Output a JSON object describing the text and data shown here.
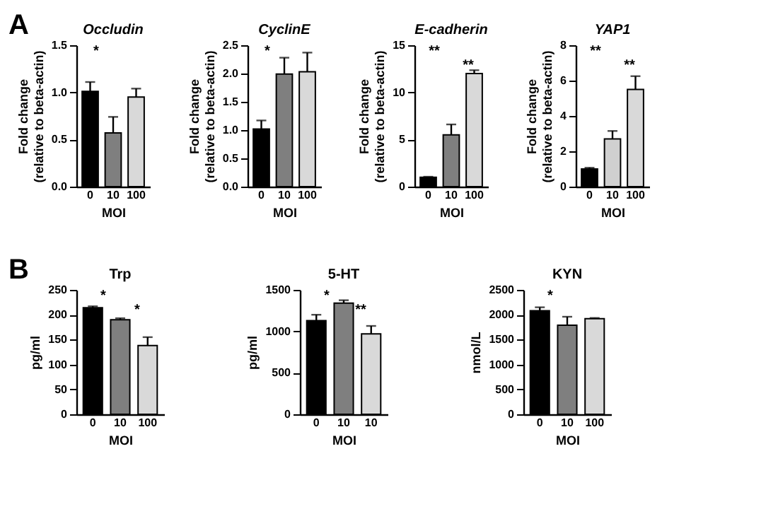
{
  "chart_data": [
    {
      "type": "bar",
      "title": "Occludin",
      "xlabel": "MOI",
      "ylabel": "Fold change\n(relative to beta-actin)",
      "categories": [
        "0",
        "10",
        "100"
      ],
      "values": [
        1.01,
        0.57,
        0.95
      ],
      "errors": [
        0.1,
        0.17,
        0.09
      ],
      "colors": [
        "#000000",
        "#7f7f7f",
        "#d9d9d9"
      ],
      "ylim": [
        0,
        1.5
      ],
      "yticks": [
        {
          "value": 0,
          "label": "0.0"
        },
        {
          "value": 0.5,
          "label": "0.5"
        },
        {
          "value": 1,
          "label": "1.0"
        },
        {
          "value": 1.5,
          "label": "1.5"
        }
      ],
      "annotations": [
        "A",
        "*"
      ]
    },
    {
      "type": "bar",
      "title": "CyclinE",
      "xlabel": "MOI",
      "ylabel": "Fold change\n(relative to beta-actin)",
      "categories": [
        "0",
        "10",
        "100"
      ],
      "values": [
        1.02,
        1.99,
        2.03
      ],
      "errors": [
        0.15,
        0.29,
        0.34
      ],
      "colors": [
        "#000000",
        "#7f7f7f",
        "#d9d9d9"
      ],
      "ylim": [
        0,
        2.5
      ],
      "yticks": [
        {
          "value": 0,
          "label": "0.0"
        },
        {
          "value": 0.5,
          "label": "0.5"
        },
        {
          "value": 1,
          "label": "1.0"
        },
        {
          "value": 1.5,
          "label": "1.5"
        },
        {
          "value": 2,
          "label": "2.0"
        },
        {
          "value": 2.5,
          "label": "2.5"
        }
      ],
      "annotations": [
        "*"
      ]
    },
    {
      "type": "bar",
      "title": "E-cadherin",
      "xlabel": "MOI",
      "ylabel": "Fold change\n(relative to beta-actin)",
      "categories": [
        "0",
        "10",
        "100"
      ],
      "values": [
        1.0,
        5.5,
        12.0
      ],
      "errors": [
        0.05,
        1.1,
        0.35
      ],
      "colors": [
        "#000000",
        "#7f7f7f",
        "#d9d9d9"
      ],
      "ylim": [
        0,
        15
      ],
      "yticks": [
        0,
        5,
        10,
        15
      ],
      "annotations": [
        "**",
        "**"
      ]
    },
    {
      "type": "bar",
      "title": "YAP1",
      "xlabel": "MOI",
      "ylabel": "Fold change\n(relative to beta-actin)",
      "categories": [
        "0",
        "10",
        "100"
      ],
      "values": [
        1.0,
        2.7,
        5.5
      ],
      "errors": [
        0.07,
        0.45,
        0.75
      ],
      "colors": [
        "#000000",
        "#d0d0d0",
        "#d9d9d9"
      ],
      "ylim": [
        0,
        8
      ],
      "yticks": [
        0,
        2,
        4,
        6,
        8
      ],
      "annotations": [
        "**",
        "**"
      ]
    },
    {
      "type": "bar",
      "title": "Trp",
      "xlabel": "MOI",
      "ylabel": "pg/ml",
      "categories": [
        "0",
        "10",
        "100"
      ],
      "values": [
        214,
        190,
        138
      ],
      "errors": [
        3,
        3,
        17
      ],
      "colors": [
        "#000000",
        "#7f7f7f",
        "#d9d9d9"
      ],
      "ylim": [
        0,
        250
      ],
      "yticks": [
        0,
        50,
        100,
        150,
        200,
        250
      ],
      "annotations": [
        "B",
        "*",
        "*"
      ]
    },
    {
      "type": "bar",
      "title": "5-HT",
      "xlabel": "MOI",
      "ylabel": "pg/ml",
      "categories": [
        "0",
        "10",
        "10"
      ],
      "values": [
        1130,
        1340,
        970
      ],
      "errors": [
        70,
        35,
        95
      ],
      "colors": [
        "#000000",
        "#7f7f7f",
        "#d9d9d9"
      ],
      "ylim": [
        0,
        1500
      ],
      "yticks": [
        0,
        500,
        1000,
        1500
      ],
      "annotations": [
        "*",
        "**"
      ]
    },
    {
      "type": "bar",
      "title": "KYN",
      "xlabel": "MOI",
      "ylabel": "nmol/L",
      "categories": [
        "0",
        "10",
        "100"
      ],
      "values": [
        2080,
        1790,
        1920
      ],
      "errors": [
        70,
        170,
        15
      ],
      "colors": [
        "#000000",
        "#7f7f7f",
        "#d9d9d9"
      ],
      "ylim": [
        0,
        2500
      ],
      "yticks": [
        0,
        500,
        1000,
        1500,
        2000,
        2500
      ],
      "annotations": [
        "*"
      ]
    }
  ]
}
